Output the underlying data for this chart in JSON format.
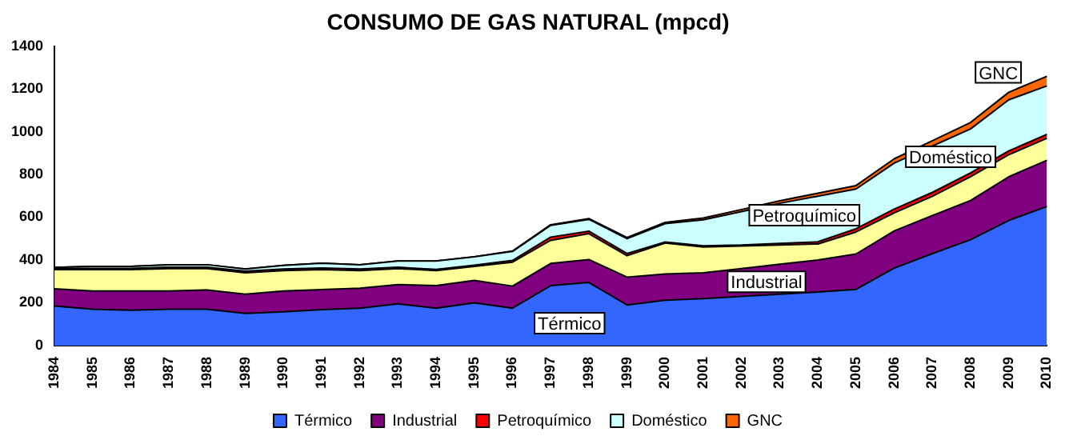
{
  "chart_data": {
    "type": "area",
    "title": "CONSUMO DE GAS NATURAL (mpcd)",
    "stacked": true,
    "legend": "bottom",
    "grid": false,
    "categories": [
      "1984",
      "1985",
      "1986",
      "1987",
      "1988",
      "1989",
      "1990",
      "1991",
      "1992",
      "1993",
      "1994",
      "1995",
      "1996",
      "1997",
      "1998",
      "1999",
      "2000",
      "2001",
      "2002",
      "2003",
      "2004",
      "2005",
      "2006",
      "2007",
      "2008",
      "2009",
      "2010"
    ],
    "ylim": [
      0,
      1400
    ],
    "yticks": [
      0,
      200,
      400,
      600,
      800,
      1000,
      1200,
      1400
    ],
    "series": [
      {
        "name": "Térmico",
        "color": "#3366ff",
        "values": [
          185,
          170,
          165,
          170,
          170,
          150,
          158,
          168,
          175,
          195,
          175,
          200,
          175,
          280,
          295,
          190,
          212,
          220,
          230,
          240,
          250,
          263,
          362,
          430,
          495,
          585,
          650
        ]
      },
      {
        "name": "Industrial",
        "color": "#800080",
        "values": [
          80,
          85,
          90,
          85,
          90,
          90,
          97,
          94,
          93,
          90,
          105,
          105,
          103,
          104,
          107,
          130,
          123,
          120,
          130,
          140,
          150,
          165,
          174,
          178,
          183,
          204,
          216
        ]
      },
      {
        "color": "#ffff99",
        "values": [
          90,
          100,
          100,
          105,
          100,
          100,
          95,
          93,
          82,
          75,
          70,
          65,
          112,
          108,
          121,
          100,
          144,
          121,
          105,
          90,
          75,
          103,
          84,
          90,
          111,
          103,
          103
        ]
      },
      {
        "name": "Petroquímico",
        "color": "#ff0000",
        "values": [
          6,
          6,
          6,
          6,
          6,
          8,
          8,
          8,
          8,
          6,
          6,
          6,
          8,
          15,
          12,
          10,
          5,
          5,
          5,
          8,
          10,
          15,
          18,
          18,
          18,
          18,
          18
        ]
      },
      {
        "name": "Doméstico",
        "color": "#ccffff",
        "values": [
          4,
          9,
          9,
          12,
          12,
          10,
          17,
          22,
          20,
          29,
          39,
          39,
          42,
          55,
          55,
          70,
          86,
          122,
          156,
          187,
          213,
          186,
          215,
          217,
          206,
          239,
          227
        ]
      },
      {
        "name": "GNC",
        "color": "#ff6600",
        "values": [
          0,
          0,
          0,
          0,
          0,
          0,
          0,
          0,
          0,
          0,
          0,
          0,
          2,
          3,
          4,
          5,
          6,
          8,
          10,
          12,
          14,
          16,
          20,
          25,
          30,
          35,
          45
        ]
      }
    ],
    "annotations": [
      "Térmico",
      "Industrial",
      "Petroquímico",
      "Doméstico",
      "GNC"
    ]
  }
}
